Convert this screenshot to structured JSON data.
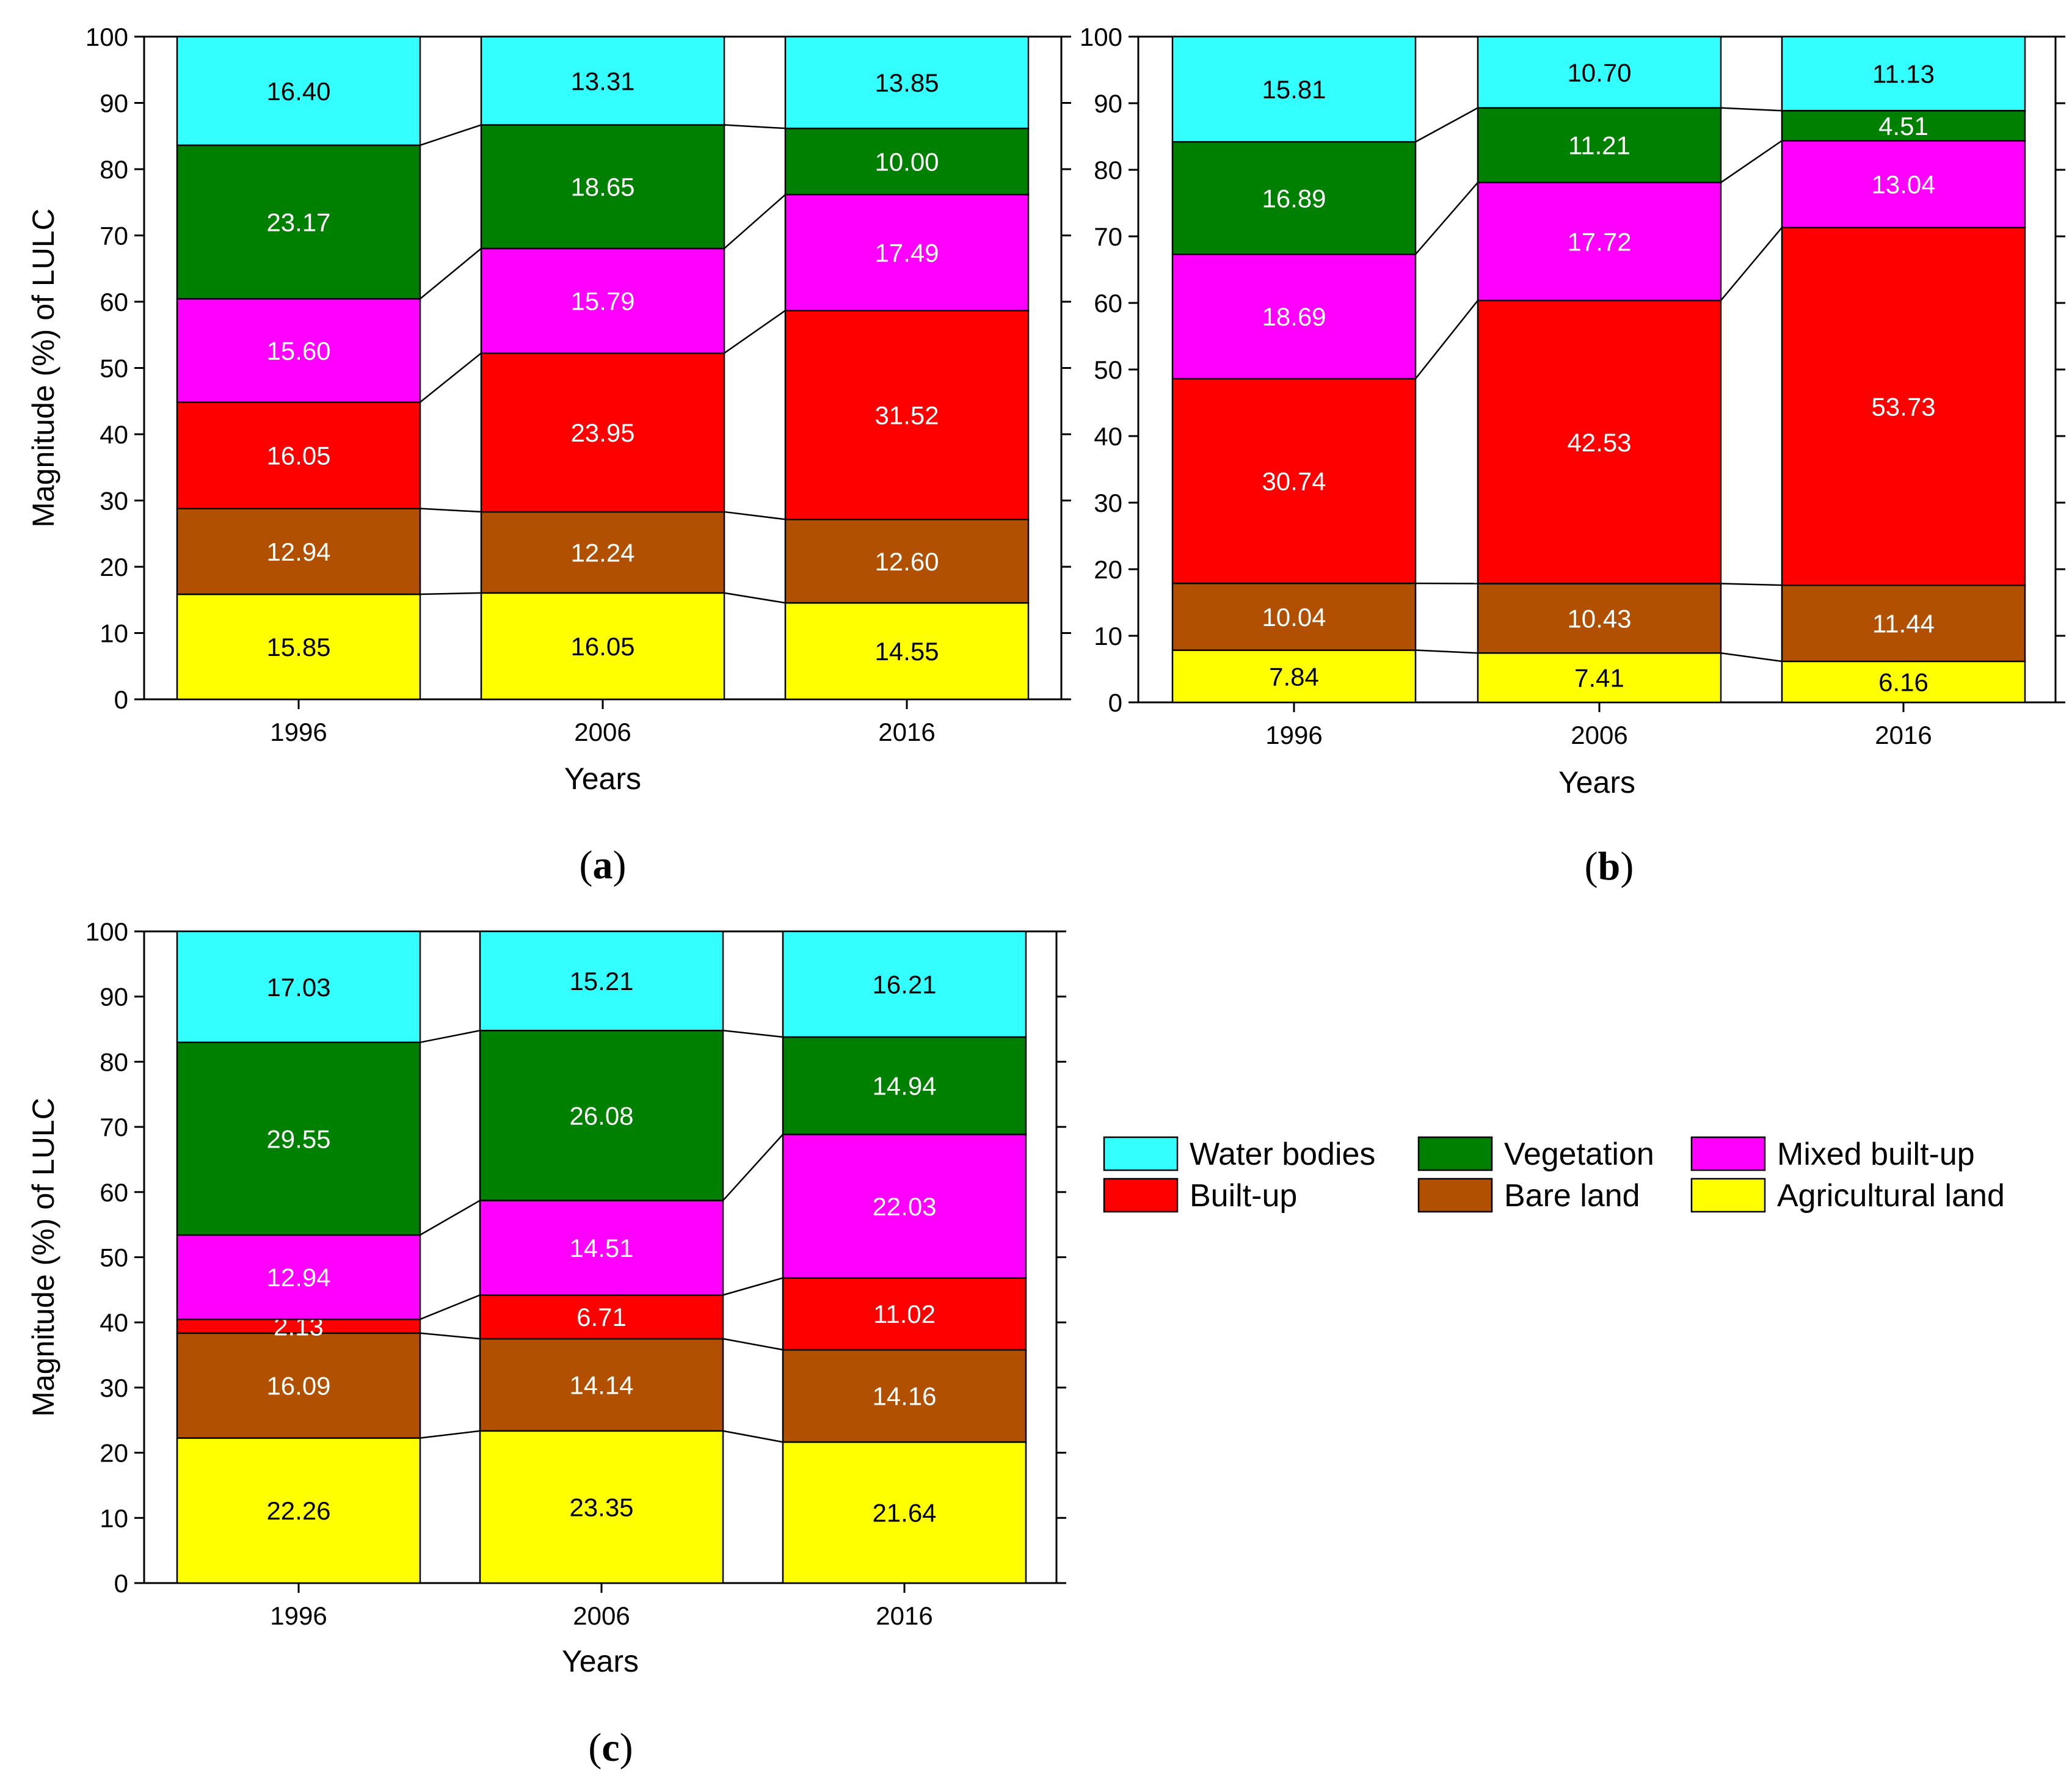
{
  "legend": {
    "items": [
      {
        "key": "water",
        "label": "Water bodies",
        "color": "#33FFFF"
      },
      {
        "key": "vegetation",
        "label": "Vegetation",
        "color": "#008000"
      },
      {
        "key": "mixed",
        "label": "Mixed built-up",
        "color": "#FF00FF"
      },
      {
        "key": "builtup",
        "label": "Built-up",
        "color": "#FF0000"
      },
      {
        "key": "bare",
        "label": "Bare land",
        "color": "#B05000"
      },
      {
        "key": "agri",
        "label": "Agricultural land",
        "color": "#FFFF00"
      }
    ]
  },
  "chart_data": [
    {
      "type": "bar",
      "stacked": true,
      "panel_label": "a",
      "xlabel": "Years",
      "ylabel": "Magnitude (%) of LULC",
      "ylim": [
        0,
        100
      ],
      "yticks": [
        0,
        10,
        20,
        30,
        40,
        50,
        60,
        70,
        80,
        90,
        100
      ],
      "categories": [
        "1996",
        "2006",
        "2016"
      ],
      "series": [
        {
          "name": "Agricultural land",
          "values": [
            15.85,
            16.05,
            14.55
          ],
          "labels": [
            "15.85",
            "16.05",
            "14.55"
          ]
        },
        {
          "name": "Bare land",
          "values": [
            12.94,
            12.24,
            12.6
          ],
          "labels": [
            "12.94",
            "12.24",
            "12.60"
          ]
        },
        {
          "name": "Built-up",
          "values": [
            16.05,
            23.95,
            31.52
          ],
          "labels": [
            "16.05",
            "23.95",
            "31.52"
          ]
        },
        {
          "name": "Mixed built-up",
          "values": [
            15.6,
            15.79,
            17.49
          ],
          "labels": [
            "15.60",
            "15.79",
            "17.49"
          ]
        },
        {
          "name": "Vegetation",
          "values": [
            23.17,
            18.65,
            10.0
          ],
          "labels": [
            "23.17",
            "18.65",
            "10.00"
          ]
        },
        {
          "name": "Water bodies",
          "values": [
            16.4,
            13.31,
            13.85
          ],
          "labels": [
            "16.40",
            "13.31",
            "13.85"
          ]
        }
      ]
    },
    {
      "type": "bar",
      "stacked": true,
      "panel_label": "b",
      "xlabel": "Years",
      "ylabel": "",
      "ylim": [
        0,
        100
      ],
      "yticks": [
        0,
        10,
        20,
        30,
        40,
        50,
        60,
        70,
        80,
        90,
        100
      ],
      "categories": [
        "1996",
        "2006",
        "2016"
      ],
      "series": [
        {
          "name": "Agricultural land",
          "values": [
            7.84,
            7.41,
            6.16
          ],
          "labels": [
            "7.84",
            "7.41",
            "6.16"
          ]
        },
        {
          "name": "Bare land",
          "values": [
            10.04,
            10.43,
            11.44
          ],
          "labels": [
            "10.04",
            "10.43",
            "11.44"
          ]
        },
        {
          "name": "Built-up",
          "values": [
            30.74,
            42.53,
            53.73
          ],
          "labels": [
            "30.74",
            "42.53",
            "53.73"
          ]
        },
        {
          "name": "Mixed built-up",
          "values": [
            18.69,
            17.72,
            13.04
          ],
          "labels": [
            "18.69",
            "17.72",
            "13.04"
          ]
        },
        {
          "name": "Vegetation",
          "values": [
            16.89,
            11.21,
            4.51
          ],
          "labels": [
            "16.89",
            "11.21",
            "4.51"
          ]
        },
        {
          "name": "Water bodies",
          "values": [
            15.81,
            10.7,
            11.13
          ],
          "labels": [
            "15.81",
            "10.70",
            "11.13"
          ]
        }
      ]
    },
    {
      "type": "bar",
      "stacked": true,
      "panel_label": "c",
      "xlabel": "Years",
      "ylabel": "Magnitude (%) of LULC",
      "ylim": [
        0,
        100
      ],
      "yticks": [
        0,
        10,
        20,
        30,
        40,
        50,
        60,
        70,
        80,
        90,
        100
      ],
      "categories": [
        "1996",
        "2006",
        "2016"
      ],
      "series": [
        {
          "name": "Agricultural land",
          "values": [
            22.26,
            23.35,
            21.64
          ],
          "labels": [
            "22.26",
            "23.35",
            "21.64"
          ]
        },
        {
          "name": "Bare land",
          "values": [
            16.09,
            14.14,
            14.16
          ],
          "labels": [
            "16.09",
            "14.14",
            "14.16"
          ]
        },
        {
          "name": "Built-up",
          "values": [
            2.13,
            6.71,
            11.02
          ],
          "labels": [
            "2.13",
            "6.71",
            "11.02"
          ]
        },
        {
          "name": "Mixed built-up",
          "values": [
            12.94,
            14.51,
            22.03
          ],
          "labels": [
            "12.94",
            "14.51",
            "22.03"
          ]
        },
        {
          "name": "Vegetation",
          "values": [
            29.55,
            26.08,
            14.94
          ],
          "labels": [
            "29.55",
            "26.08",
            "14.94"
          ]
        },
        {
          "name": "Water bodies",
          "values": [
            17.03,
            15.21,
            16.21
          ],
          "labels": [
            "17.03",
            "15.21",
            "16.21"
          ]
        }
      ]
    }
  ]
}
